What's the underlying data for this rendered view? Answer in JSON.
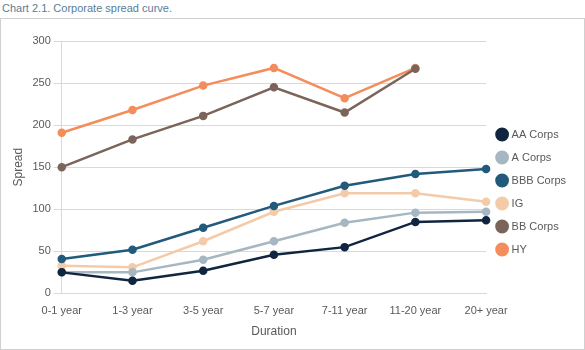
{
  "chart_data": {
    "type": "line",
    "title": "Chart 2.1. Corporate spread curve.",
    "x_label": "Duration",
    "y_label": "Spread",
    "categories": [
      "0-1 year",
      "1-3 year",
      "3-5 year",
      "5-7 year",
      "7-11 year",
      "11-20 year",
      "20+ year"
    ],
    "series": [
      {
        "name": "AA Corps",
        "color": "#10253f",
        "marker": "circle",
        "values": [
          25,
          15,
          27,
          46,
          55,
          85,
          87
        ]
      },
      {
        "name": "A Corps",
        "color": "#a6b7c1",
        "marker": "circle",
        "values": [
          25,
          25,
          40,
          62,
          84,
          96,
          97
        ]
      },
      {
        "name": "BBB Corps",
        "color": "#225a7c",
        "marker": "circle",
        "values": [
          41,
          52,
          78,
          104,
          128,
          142,
          148
        ]
      },
      {
        "name": "IG",
        "color": "#f4cba8",
        "marker": "circle",
        "values": [
          33,
          31,
          62,
          97,
          119,
          119,
          109
        ]
      },
      {
        "name": "BB Corps",
        "color": "#7b645a",
        "marker": "circle",
        "values": [
          150,
          183,
          211,
          245,
          215,
          267,
          null
        ]
      },
      {
        "name": "HY",
        "color": "#f48d5c",
        "marker": "circle",
        "values": [
          191,
          218,
          247,
          268,
          232,
          268,
          null
        ]
      }
    ],
    "ylim": [
      0,
      300
    ],
    "yticks": [
      0,
      50,
      100,
      150,
      200,
      250,
      300
    ],
    "grid": true,
    "legend": "right"
  }
}
